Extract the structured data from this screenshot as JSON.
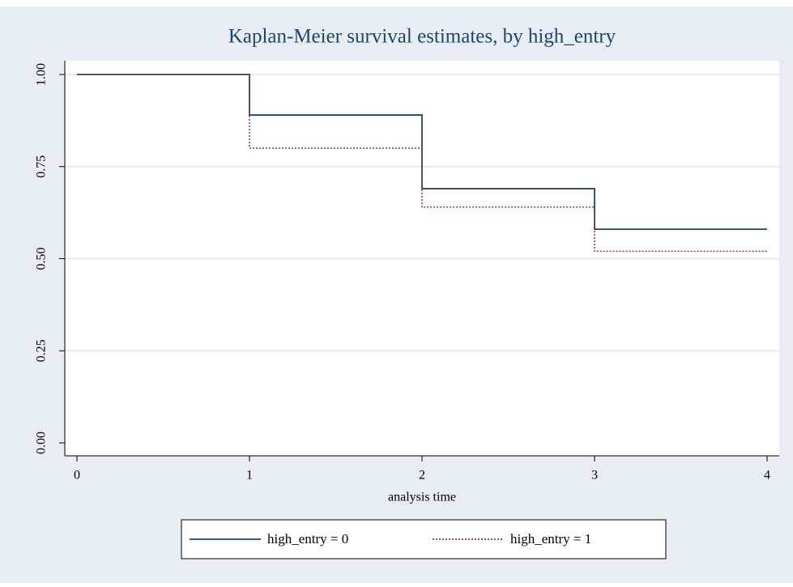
{
  "chart_data": {
    "type": "line",
    "title": "Kaplan-Meier survival estimates, by high_entry",
    "x_label": "analysis time",
    "x": [
      0,
      1,
      2,
      3,
      4
    ],
    "series": [
      {
        "name": "high_entry = 0",
        "color": "#1a476f",
        "style": "solid",
        "values": [
          1.0,
          0.89,
          0.69,
          0.58,
          0.58
        ]
      },
      {
        "name": "high_entry = 1",
        "color": "#90353b",
        "style": "dotted",
        "values": [
          1.0,
          0.8,
          0.64,
          0.52,
          0.52
        ]
      }
    ],
    "step": true,
    "xlim": [
      0,
      4
    ],
    "xticks": [
      0,
      1,
      2,
      3,
      4
    ],
    "ylim": [
      0,
      1
    ],
    "yticks": [
      {
        "value": 0,
        "label": "0.00"
      },
      {
        "value": 0.25,
        "label": "0.25"
      },
      {
        "value": 0.5,
        "label": "0.50"
      },
      {
        "value": 0.75,
        "label": "0.75"
      },
      {
        "value": 1,
        "label": "1.00"
      }
    ],
    "grid": true,
    "legend": "bottom"
  }
}
